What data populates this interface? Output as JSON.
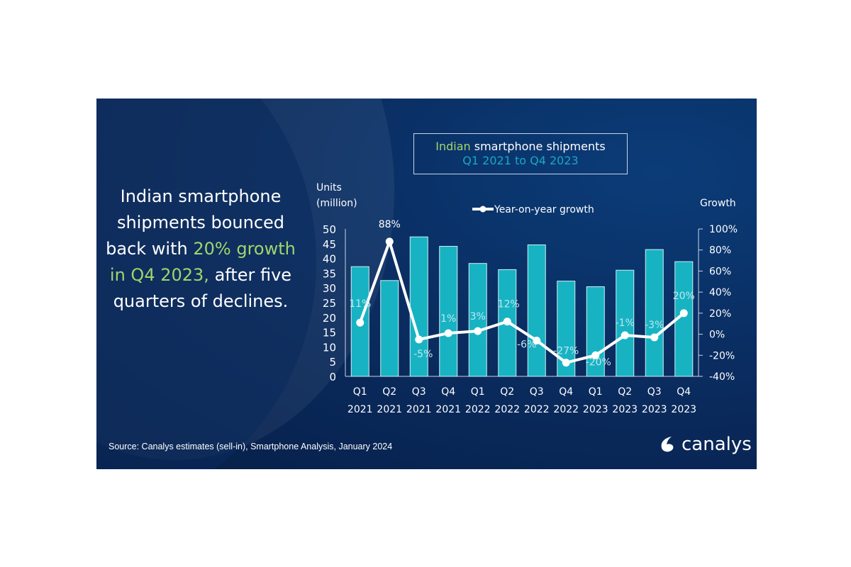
{
  "headline": {
    "before": "Indian smartphone shipments bounced back with ",
    "highlight": "20% growth in Q4 2023,",
    "after": " after five quarters of declines."
  },
  "chart_data": {
    "type": "bar+line",
    "title": {
      "highlight": "Indian",
      "rest": " smartphone shipments",
      "subtitle": "Q1 2021 to Q4 2023"
    },
    "left_axis_label": [
      "Units",
      "(million)"
    ],
    "right_axis_label": "Growth",
    "categories": [
      [
        "Q1",
        "2021"
      ],
      [
        "Q2",
        "2021"
      ],
      [
        "Q3",
        "2021"
      ],
      [
        "Q4",
        "2021"
      ],
      [
        "Q1",
        "2022"
      ],
      [
        "Q2",
        "2022"
      ],
      [
        "Q3",
        "2022"
      ],
      [
        "Q4",
        "2022"
      ],
      [
        "Q1",
        "2023"
      ],
      [
        "Q2",
        "2023"
      ],
      [
        "Q3",
        "2023"
      ],
      [
        "Q4",
        "2023"
      ]
    ],
    "bars": {
      "values": [
        37.2,
        32.5,
        47.3,
        44.1,
        38.3,
        36.2,
        44.6,
        32.3,
        30.4,
        36.0,
        43.0,
        38.9
      ],
      "color": "#17b3c3"
    },
    "line": {
      "name": "Year-on-year growth",
      "values": [
        11,
        88,
        -5,
        1,
        3,
        12,
        -6,
        -27,
        -20,
        -1,
        -3,
        20
      ],
      "labels": [
        "11%",
        "88%",
        "-5%",
        "1%",
        "3%",
        "12%",
        "-6%",
        "-27%",
        "-20%",
        "-1%",
        "-3%",
        "20%"
      ],
      "color": "#ffffff"
    },
    "ylim_left": [
      0,
      50
    ],
    "yticks_left": [
      "0",
      "5",
      "10",
      "15",
      "20",
      "25",
      "30",
      "35",
      "40",
      "45",
      "50"
    ],
    "ylim_right": [
      -40,
      100
    ],
    "yticks_right": [
      "-40%",
      "-20%",
      "0%",
      "20%",
      "40%",
      "60%",
      "80%",
      "100%"
    ],
    "legend_placement": "top"
  },
  "source": "Source:  Canalys estimates (sell-in), Smartphone Analysis, January 2024",
  "logo": "canalys",
  "colors": {
    "background": "#0a2d61",
    "highlight": "#9fd66b",
    "subtitle": "#1aa7c4",
    "bar": "#17b3c3"
  }
}
